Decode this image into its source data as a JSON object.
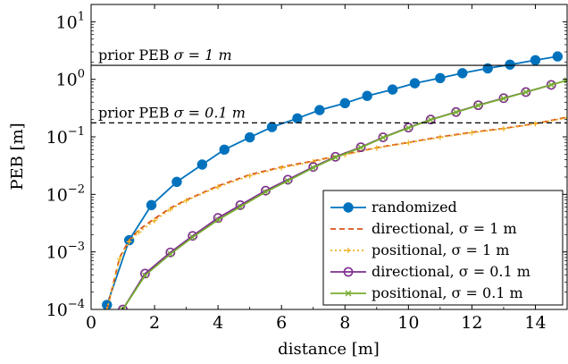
{
  "chart_data": {
    "type": "line",
    "xlabel": "distance [m]",
    "ylabel": "PEB [m]",
    "xlim": [
      0,
      15
    ],
    "ylim": [
      0.0001,
      20
    ],
    "yscale": "log",
    "grid": false,
    "legend_position": "bottom-right",
    "x_ticks": [
      0,
      2,
      4,
      6,
      8,
      10,
      12,
      14
    ],
    "x_tick_labels": [
      "0",
      "2",
      "4",
      "6",
      "8",
      "10",
      "12",
      "14"
    ],
    "y_ticks": [
      0.0001,
      0.001,
      0.01,
      0.1,
      1,
      10
    ],
    "y_tick_labels": [
      {
        "base": "10",
        "exp": "−4"
      },
      {
        "base": "10",
        "exp": "−3"
      },
      {
        "base": "10",
        "exp": "−2"
      },
      {
        "base": "10",
        "exp": "−1"
      },
      {
        "base": "10",
        "exp": "0"
      },
      {
        "base": "10",
        "exp": "1"
      }
    ],
    "reference_lines": [
      {
        "label": "prior PEB",
        "sigma_text": "σ = 1 m",
        "y": 1.75,
        "style": "solid"
      },
      {
        "label": "prior PEB",
        "sigma_text": "σ = 0.1 m",
        "y": 0.175,
        "style": "dashed"
      }
    ],
    "series": [
      {
        "name": "randomized",
        "legend_text": "randomized",
        "color": "#0072BD",
        "dash": "solid",
        "marker": "filled-circle",
        "x": [
          0.5,
          1.2,
          1.9,
          2.7,
          3.5,
          4.2,
          5.0,
          5.7,
          6.5,
          7.2,
          8.0,
          8.7,
          9.5,
          10.2,
          11.0,
          11.7,
          12.5,
          13.2,
          14.0,
          14.7
        ],
        "y": [
          0.00012,
          0.0016,
          0.0065,
          0.0165,
          0.033,
          0.06,
          0.098,
          0.148,
          0.21,
          0.292,
          0.385,
          0.515,
          0.665,
          0.855,
          1.05,
          1.28,
          1.55,
          1.8,
          2.15,
          2.5
        ]
      },
      {
        "name": "directional, σ = 1 m",
        "legend_text": "directional, σ = 1 m",
        "color": "#D95319",
        "dash": "dashed",
        "marker": "none",
        "x": [
          0.5,
          0.9,
          1.2,
          1.5,
          2.0,
          2.5,
          3.0,
          4.0,
          5.0,
          6.0,
          7.0,
          8.0,
          9.0,
          10.0,
          11.0,
          12.0,
          13.0,
          14.0,
          15.0
        ],
        "y": [
          0.0001,
          0.0008,
          0.0016,
          0.0024,
          0.0038,
          0.0058,
          0.008,
          0.014,
          0.022,
          0.03,
          0.038,
          0.05,
          0.065,
          0.08,
          0.1,
          0.12,
          0.14,
          0.17,
          0.22
        ]
      },
      {
        "name": "positional, σ = 1 m",
        "legend_text": "positional, σ = 1 m",
        "color": "#EDB120",
        "dash": "dotted",
        "marker": "plus",
        "x": [
          0.5,
          0.9,
          1.2,
          1.5,
          2.0,
          2.5,
          3.0,
          4.0,
          5.0,
          6.0,
          7.0,
          8.0,
          9.0,
          10.0,
          11.0,
          12.0,
          13.0,
          14.0,
          15.0
        ],
        "y": [
          0.0001,
          0.00075,
          0.0015,
          0.0022,
          0.0035,
          0.0055,
          0.0078,
          0.0135,
          0.021,
          0.029,
          0.037,
          0.049,
          0.064,
          0.079,
          0.098,
          0.118,
          0.138,
          0.168,
          0.215
        ]
      },
      {
        "name": "directional, σ = 0.1 m",
        "legend_text": "directional, σ = 0.1 m",
        "color": "#7E2F8E",
        "dash": "solid",
        "marker": "open-circle",
        "x": [
          1.0,
          1.7,
          2.5,
          3.2,
          4.0,
          4.7,
          5.5,
          6.2,
          7.0,
          7.7,
          8.5,
          9.2,
          10.0,
          10.7,
          11.5,
          12.2,
          13.0,
          13.7,
          14.5
        ],
        "y": [
          0.0001,
          0.00042,
          0.00098,
          0.0019,
          0.0039,
          0.0065,
          0.0116,
          0.018,
          0.03,
          0.045,
          0.066,
          0.098,
          0.145,
          0.2,
          0.27,
          0.355,
          0.47,
          0.6,
          0.8
        ]
      },
      {
        "name": "positional, σ = 0.1 m",
        "legend_text": "positional, σ = 0.1 m",
        "color": "#77AC30",
        "dash": "solid",
        "marker": "cross",
        "x": [
          1.0,
          1.7,
          2.5,
          3.2,
          4.0,
          4.7,
          5.5,
          6.2,
          7.0,
          7.7,
          8.5,
          9.2,
          10.0,
          10.7,
          11.5,
          12.2,
          13.0,
          13.7,
          14.5,
          15.0
        ],
        "y": [
          0.0001,
          0.00039,
          0.00092,
          0.0018,
          0.0036,
          0.0061,
          0.011,
          0.0172,
          0.029,
          0.044,
          0.065,
          0.097,
          0.143,
          0.198,
          0.268,
          0.352,
          0.465,
          0.6,
          0.8,
          0.96
        ]
      }
    ]
  }
}
